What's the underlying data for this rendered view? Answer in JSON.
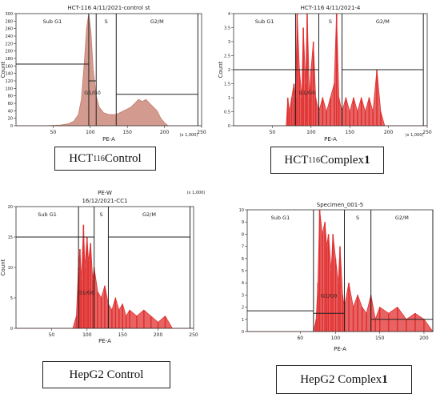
{
  "captions": [
    {
      "main": "HCT",
      "sub": "116",
      "rest": " Control",
      "bold": ""
    },
    {
      "main": "HCT",
      "sub": "116",
      "rest": " Complex ",
      "bold": "1"
    },
    {
      "main": "HepG2 Control",
      "sub": "",
      "rest": "",
      "bold": ""
    },
    {
      "main": "HepG2 Complex ",
      "sub": "",
      "rest": "",
      "bold": "1"
    }
  ],
  "colors": {
    "fill": "#c0504d",
    "hist_a": "#c47a6a",
    "hist_b": "#e03030",
    "grid": "#555555"
  },
  "chart_data": [
    {
      "type": "area",
      "title": "HCT-116 4/11/2021-control st",
      "xlabel": "PE-A",
      "ylabel": "Count",
      "x_unit": "(x 1,000)",
      "xlim": [
        0,
        250
      ],
      "ylim": [
        0,
        300
      ],
      "xticks": [
        "50",
        "100",
        "150",
        "200",
        "250"
      ],
      "yticks": [
        "0",
        "20",
        "40",
        "60",
        "80",
        "100",
        "120",
        "140",
        "160",
        "180",
        "200",
        "220",
        "240",
        "260",
        "280",
        "300"
      ],
      "gates": [
        "Sub G1",
        "G1/G0",
        "S",
        "G2/M"
      ],
      "x": [
        0,
        40,
        60,
        70,
        78,
        84,
        88,
        92,
        95,
        98,
        101,
        104,
        108,
        112,
        118,
        125,
        135,
        145,
        155,
        160,
        165,
        170,
        175,
        180,
        185,
        190,
        195,
        200,
        205,
        250
      ],
      "values": [
        0,
        0,
        2,
        5,
        12,
        30,
        70,
        170,
        260,
        300,
        250,
        150,
        80,
        50,
        35,
        30,
        30,
        40,
        50,
        60,
        70,
        65,
        70,
        60,
        50,
        40,
        20,
        8,
        0,
        0
      ]
    },
    {
      "type": "area",
      "title": "HCT-116 4/11/2021-4",
      "xlabel": "PE-A",
      "ylabel": "Count",
      "x_unit": "(x 1,000)",
      "xlim": [
        0,
        250
      ],
      "ylim": [
        0,
        4
      ],
      "xticks": [
        "50",
        "100",
        "150",
        "200",
        "250"
      ],
      "yticks": [
        "0",
        "0.5",
        "1",
        "1.5",
        "2",
        "2.5",
        "3",
        "3.5",
        "4"
      ],
      "gates": [
        "Sub G1",
        "G1/G0",
        "S",
        "G2/M"
      ],
      "x": [
        0,
        68,
        70,
        72,
        75,
        78,
        80,
        82,
        85,
        88,
        90,
        93,
        95,
        98,
        100,
        103,
        106,
        110,
        115,
        120,
        125,
        130,
        133,
        136,
        140,
        145,
        150,
        155,
        160,
        165,
        170,
        175,
        180,
        185,
        190,
        195,
        200,
        250
      ],
      "values": [
        0,
        0,
        1,
        0.5,
        1,
        1.5,
        1,
        4,
        2,
        1,
        3.5,
        1.5,
        4,
        1,
        2,
        3,
        1,
        0.5,
        1,
        0.5,
        1,
        1.5,
        4,
        1,
        0.5,
        1,
        0.5,
        1,
        0.5,
        1,
        0.5,
        1,
        0.5,
        2,
        0.5,
        0,
        0,
        0
      ]
    },
    {
      "type": "area",
      "title": "16/12/2021-CC1",
      "xlabel": "PE-A",
      "ylabel": "Count",
      "x_unit": "(x 1,000)",
      "extra": "PE-W",
      "xlim": [
        0,
        250
      ],
      "ylim": [
        0,
        20
      ],
      "xticks": [
        "50",
        "100",
        "150",
        "200",
        "250"
      ],
      "yticks": [
        "0",
        "5",
        "10",
        "15",
        "20"
      ],
      "gates": [
        "Sub G1",
        "G1/G0",
        "S",
        "G2/M"
      ],
      "x": [
        0,
        80,
        85,
        88,
        90,
        92,
        95,
        97,
        100,
        102,
        105,
        108,
        110,
        115,
        120,
        125,
        130,
        135,
        140,
        145,
        150,
        155,
        160,
        170,
        180,
        190,
        200,
        210,
        220,
        250
      ],
      "values": [
        0,
        0,
        2,
        10,
        13,
        8,
        17,
        10,
        15,
        11,
        14,
        8,
        10,
        6,
        5,
        7,
        4,
        3,
        5,
        3,
        4,
        2,
        3,
        2,
        3,
        2,
        1,
        2,
        0,
        0
      ]
    },
    {
      "type": "area",
      "title": "Specimen_001-5",
      "xlabel": "PE-A",
      "ylabel": "",
      "x_unit": "",
      "xlim": [
        0,
        210
      ],
      "ylim": [
        0,
        10
      ],
      "xticks": [
        "60",
        "100",
        "150",
        "200"
      ],
      "yticks": [
        "0",
        "1",
        "2",
        "3",
        "4",
        "5",
        "6",
        "7",
        "8",
        "9",
        "10"
      ],
      "gates": [
        "Sub G1",
        "G1/G0",
        "S",
        "G2/M"
      ],
      "x": [
        0,
        70,
        75,
        78,
        80,
        82,
        85,
        88,
        90,
        92,
        95,
        97,
        100,
        103,
        105,
        108,
        110,
        115,
        120,
        125,
        130,
        135,
        140,
        145,
        150,
        160,
        170,
        180,
        190,
        200,
        210
      ],
      "values": [
        0,
        0,
        0,
        1,
        4,
        10,
        8,
        9,
        7,
        8,
        5,
        8,
        6,
        4,
        7,
        3,
        2,
        4,
        2,
        3,
        2,
        1.5,
        3,
        1,
        2,
        1.5,
        2,
        1,
        1.5,
        1,
        0
      ]
    }
  ]
}
